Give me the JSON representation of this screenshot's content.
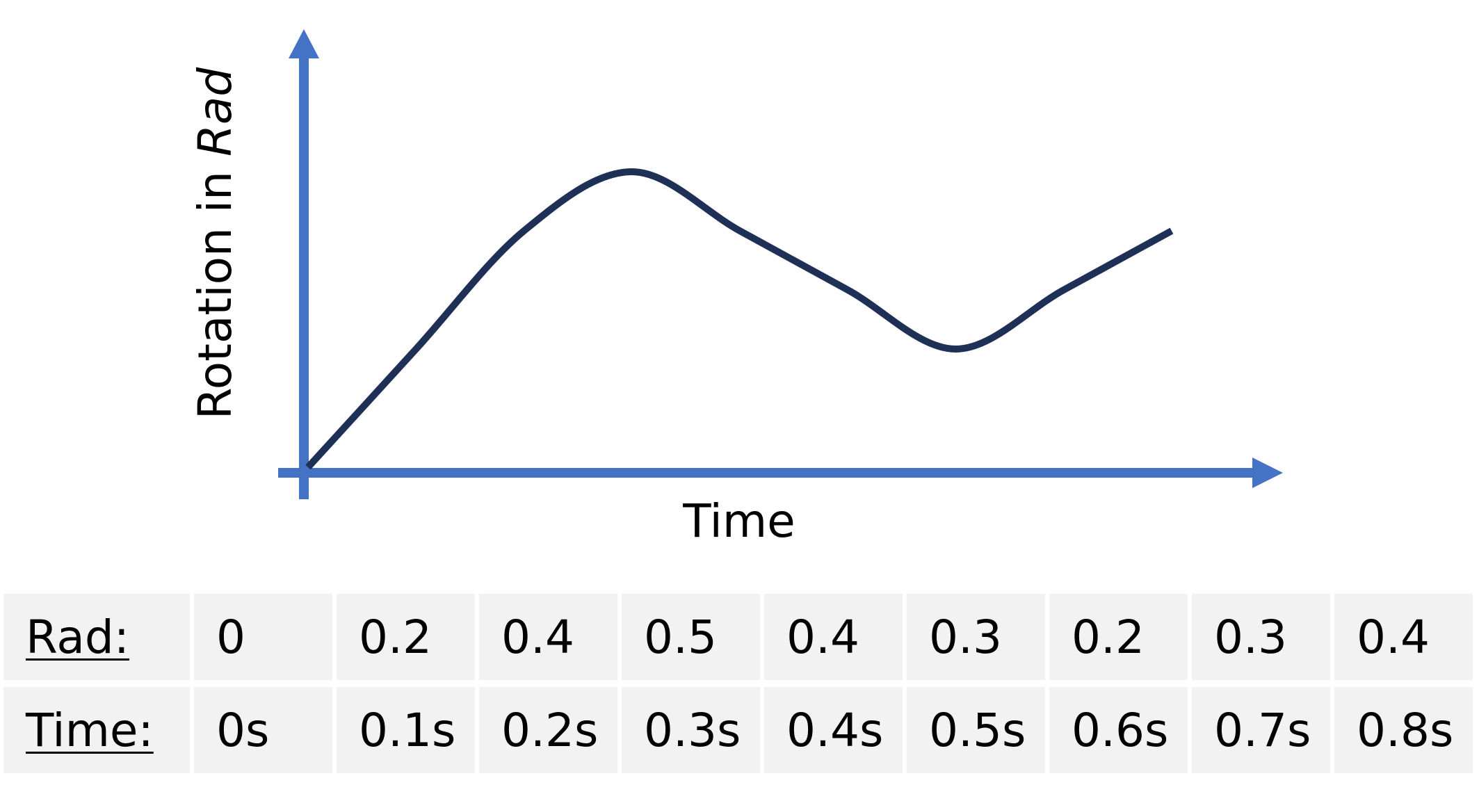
{
  "chart_data": {
    "type": "line",
    "title": "",
    "xlabel": "Time",
    "ylabel_prefix": "Rotation in ",
    "ylabel_emphasis": "Rad",
    "x": [
      0,
      0.1,
      0.2,
      0.3,
      0.4,
      0.5,
      0.6,
      0.7,
      0.8
    ],
    "values": [
      0,
      0.2,
      0.4,
      0.5,
      0.4,
      0.3,
      0.2,
      0.3,
      0.4
    ],
    "series_color": "#1f3056",
    "axis_color": "#4472c4",
    "ticks_shown": false,
    "grid": false
  },
  "table": {
    "rows": [
      {
        "label": "Rad:",
        "cells": [
          "0",
          "0.2",
          "0.4",
          "0.5",
          "0.4",
          "0.3",
          "0.2",
          "0.3",
          "0.4"
        ]
      },
      {
        "label": "Time:",
        "cells": [
          "0s",
          "0.1s",
          "0.2s",
          "0.3s",
          "0.4s",
          "0.5s",
          "0.6s",
          "0.7s",
          "0.8s"
        ]
      }
    ]
  }
}
